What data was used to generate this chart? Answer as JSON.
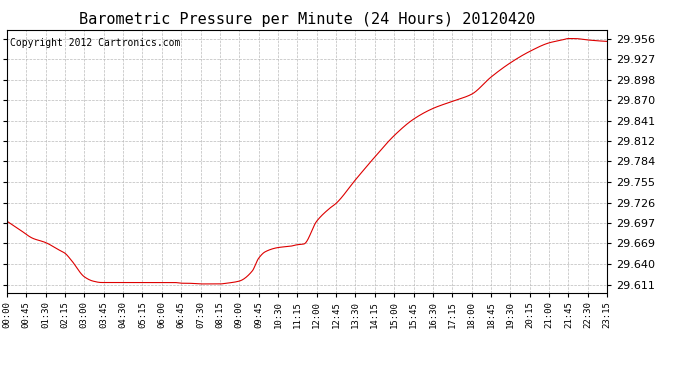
{
  "title": "Barometric Pressure per Minute (24 Hours) 20120420",
  "copyright": "Copyright 2012 Cartronics.com",
  "line_color": "#dd0000",
  "background_color": "#ffffff",
  "grid_color": "#bbbbbb",
  "title_fontsize": 11,
  "copyright_fontsize": 7,
  "ytick_fontsize": 8,
  "xtick_fontsize": 6.5,
  "yticks": [
    29.611,
    29.64,
    29.669,
    29.697,
    29.726,
    29.755,
    29.784,
    29.812,
    29.841,
    29.87,
    29.898,
    29.927,
    29.956
  ],
  "ylim": [
    29.6,
    29.968
  ],
  "xtick_labels": [
    "00:00",
    "00:45",
    "01:30",
    "02:15",
    "03:00",
    "03:45",
    "04:30",
    "05:15",
    "06:00",
    "06:45",
    "07:30",
    "08:15",
    "09:00",
    "09:45",
    "10:30",
    "11:15",
    "12:00",
    "12:45",
    "13:30",
    "14:15",
    "15:00",
    "15:45",
    "16:30",
    "17:15",
    "18:00",
    "18:45",
    "19:30",
    "20:15",
    "21:00",
    "21:45",
    "22:30",
    "23:15"
  ],
  "keypoints_minutes": [
    0,
    30,
    60,
    90,
    120,
    135,
    150,
    180,
    200,
    220,
    240,
    260,
    270,
    290,
    310,
    315,
    330,
    360,
    390,
    405,
    420,
    450,
    480,
    495,
    510,
    540,
    570,
    585,
    600,
    630,
    660,
    675,
    690,
    720,
    750,
    765,
    810,
    855,
    900,
    945,
    990,
    1035,
    1080,
    1125,
    1170,
    1215,
    1260,
    1290,
    1305,
    1320,
    1350,
    1370,
    1395
  ],
  "keypoints_values": [
    29.7,
    29.688,
    29.676,
    29.67,
    29.66,
    29.655,
    29.645,
    29.622,
    29.616,
    29.614,
    29.614,
    29.614,
    29.614,
    29.614,
    29.614,
    29.614,
    29.614,
    29.614,
    29.614,
    29.613,
    29.613,
    29.612,
    29.612,
    29.612,
    29.613,
    29.616,
    29.63,
    29.648,
    29.657,
    29.663,
    29.665,
    29.667,
    29.668,
    29.7,
    29.718,
    29.725,
    29.758,
    29.79,
    29.82,
    29.843,
    29.858,
    29.868,
    29.878,
    29.902,
    29.922,
    29.938,
    29.95,
    29.954,
    29.956,
    29.956,
    29.954,
    29.953,
    29.952
  ]
}
